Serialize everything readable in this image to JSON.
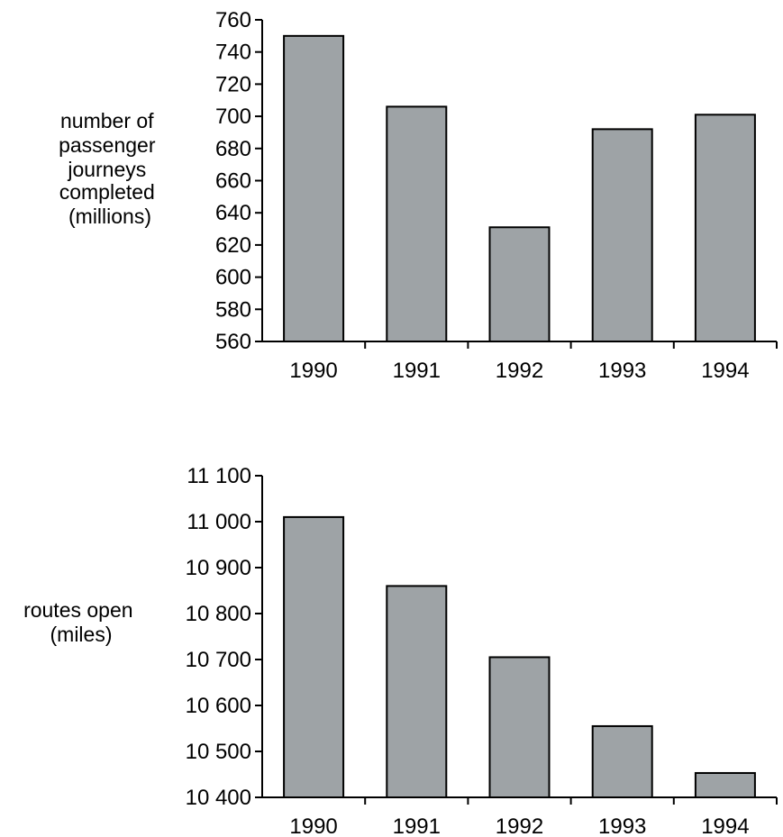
{
  "chart_data": [
    {
      "type": "bar",
      "categories": [
        "1990",
        "1991",
        "1992",
        "1993",
        "1994"
      ],
      "values": [
        750,
        706,
        631,
        692,
        701
      ],
      "ylabel_lines": [
        "number of",
        "passenger",
        "journeys",
        "completed",
        "(millions)"
      ],
      "ylim": [
        560,
        760
      ],
      "ytick_values": [
        560,
        580,
        600,
        620,
        640,
        660,
        680,
        700,
        720,
        740,
        760
      ],
      "ytick_labels": [
        "560",
        "580",
        "600",
        "620",
        "640",
        "660",
        "680",
        "700",
        "720",
        "740",
        "760"
      ],
      "grid": false,
      "bar_color": "#9ea3a6"
    },
    {
      "type": "bar",
      "categories": [
        "1990",
        "1991",
        "1992",
        "1993",
        "1994"
      ],
      "values": [
        11010,
        10860,
        10705,
        10555,
        10453
      ],
      "ylabel_lines": [
        "routes open",
        "(miles)"
      ],
      "ylim": [
        10400,
        11100
      ],
      "ytick_values": [
        10400,
        10500,
        10600,
        10700,
        10800,
        10900,
        11000,
        11100
      ],
      "ytick_labels": [
        "10 400",
        "10 500",
        "10 600",
        "10 700",
        "10 800",
        "10 900",
        "11 000",
        "11 100"
      ],
      "grid": false,
      "bar_color": "#9ea3a6"
    }
  ]
}
